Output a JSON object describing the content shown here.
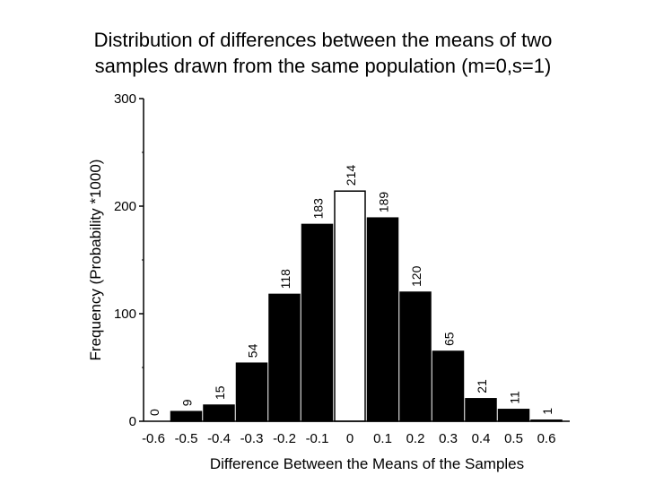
{
  "title_lines": [
    "Distribution of differences between the means of two",
    "samples drawn from the same population (m=0,s=1)"
  ],
  "chart_data": {
    "type": "bar",
    "title": "Distribution of differences between the means of two samples drawn from the same population (m=0,s=1)",
    "xlabel": "Difference Between the Means of the Samples",
    "ylabel": "Frequency (Probability *1000)",
    "categories": [
      "-0.6",
      "-0.5",
      "-0.4",
      "-0.3",
      "-0.2",
      "-0.1",
      "0",
      "0.1",
      "0.2",
      "0.3",
      "0.4",
      "0.5",
      "0.6"
    ],
    "values": [
      0,
      9,
      15,
      54,
      118,
      183,
      214,
      189,
      120,
      65,
      21,
      11,
      1
    ],
    "data_labels": [
      "0",
      "9",
      "15",
      "54",
      "118",
      "183",
      "214",
      "189",
      "120",
      "65",
      "21",
      "11",
      "1"
    ],
    "highlight_category": "0",
    "ylim": [
      0,
      300
    ],
    "yticks": [
      "0",
      "100",
      "200",
      "300"
    ],
    "minor_yticks": [
      50,
      150,
      250
    ],
    "grid": false,
    "legend": "none",
    "colors": {
      "bar": "#000000",
      "highlight_bar": "#ffffff",
      "axis": "#000000"
    }
  }
}
